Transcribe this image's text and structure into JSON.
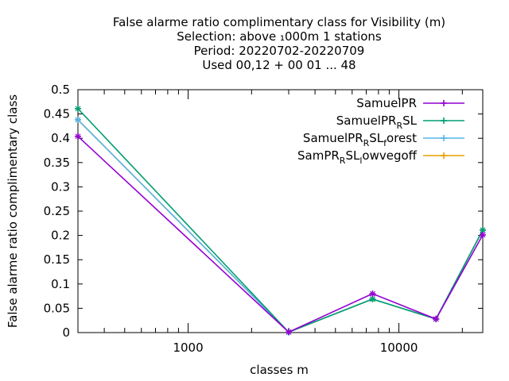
{
  "chart_data": {
    "type": "line",
    "title_lines": [
      "False alarme ratio complimentary class  for Visibility (m)",
      "Selection: above ₁000m      1 stations",
      "Period: 20220702-20220709",
      "Used  00,12  + 00 01 ... 48"
    ],
    "xlabel": "classes m",
    "ylabel": "False alarme ratio complimentary class",
    "x_scale": "log",
    "xlim": [
      300,
      25000
    ],
    "ylim": [
      0,
      0.5
    ],
    "x_ticks": [
      {
        "value": 1000,
        "label": "1000"
      },
      {
        "value": 10000,
        "label": "10000"
      }
    ],
    "y_ticks": [
      {
        "value": 0,
        "label": "0"
      },
      {
        "value": 0.05,
        "label": "0.05"
      },
      {
        "value": 0.1,
        "label": "0.1"
      },
      {
        "value": 0.15,
        "label": "0.15"
      },
      {
        "value": 0.2,
        "label": "0.2"
      },
      {
        "value": 0.25,
        "label": "0.25"
      },
      {
        "value": 0.3,
        "label": "0.3"
      },
      {
        "value": 0.35,
        "label": "0.35"
      },
      {
        "value": 0.4,
        "label": "0.4"
      },
      {
        "value": 0.45,
        "label": "0.45"
      },
      {
        "value": 0.5,
        "label": "0.5"
      }
    ],
    "grid": false,
    "legend_position": "top-right",
    "series": [
      {
        "name": "SamuelPR",
        "name_parts": [
          {
            "t": "SamuelPR",
            "s": ""
          }
        ],
        "color": "#9400d3",
        "x": [
          300,
          3000,
          7500,
          15000,
          25000
        ],
        "y": [
          0.404,
          0.001,
          0.08,
          0.028,
          0.201
        ]
      },
      {
        "name": "SamuelPR_RSL",
        "name_parts": [
          {
            "t": "SamuelPR",
            "s": ""
          },
          {
            "t": "R",
            "s": "sub"
          },
          {
            "t": "SL",
            "s": ""
          }
        ],
        "color": "#009e73",
        "x": [
          300,
          3000,
          7500,
          15000,
          25000
        ],
        "y": [
          0.461,
          0.001,
          0.069,
          0.028,
          0.211
        ]
      },
      {
        "name": "SamuelPR_RSL_forest",
        "name_parts": [
          {
            "t": "SamuelPR",
            "s": ""
          },
          {
            "t": "R",
            "s": "sub"
          },
          {
            "t": "SL",
            "s": ""
          },
          {
            "t": "f",
            "s": "sub"
          },
          {
            "t": "orest",
            "s": ""
          }
        ],
        "color": "#56b4e9",
        "x": [
          300,
          3000,
          7500,
          15000,
          25000
        ],
        "y": [
          0.438,
          0.001,
          0.069,
          0.028,
          0.211
        ]
      },
      {
        "name": "SamPR_RSL_lowvegoff",
        "name_parts": [
          {
            "t": "SamPR",
            "s": ""
          },
          {
            "t": "R",
            "s": "sub"
          },
          {
            "t": "SL",
            "s": ""
          },
          {
            "t": "l",
            "s": "sub"
          },
          {
            "t": "owvegoff",
            "s": ""
          }
        ],
        "color": "#e69f00",
        "x": [
          300,
          3000,
          7500,
          15000,
          25000
        ],
        "y": [
          0.438,
          0.001,
          0.069,
          0.028,
          0.211
        ]
      }
    ]
  }
}
